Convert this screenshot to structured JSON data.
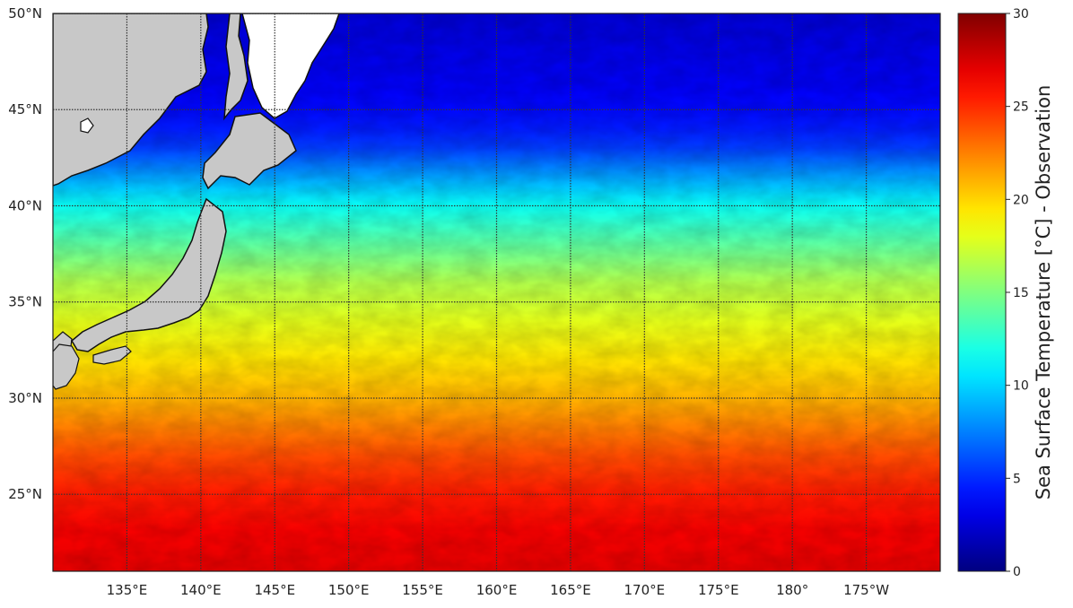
{
  "chart_data": {
    "type": "heatmap",
    "title": "",
    "map": {
      "lon_range": [
        130,
        190
      ],
      "lat_range": [
        21,
        50
      ],
      "land_color": "#c8c8c8",
      "no_data_color": "#ffffff",
      "gridlines": "dotted"
    },
    "x_ticks": [
      {
        "lon": 135,
        "label": "135°E"
      },
      {
        "lon": 140,
        "label": "140°E"
      },
      {
        "lon": 145,
        "label": "145°E"
      },
      {
        "lon": 150,
        "label": "150°E"
      },
      {
        "lon": 155,
        "label": "155°E"
      },
      {
        "lon": 160,
        "label": "160°E"
      },
      {
        "lon": 165,
        "label": "165°E"
      },
      {
        "lon": 170,
        "label": "170°E"
      },
      {
        "lon": 175,
        "label": "175°E"
      },
      {
        "lon": 180,
        "label": "180°"
      },
      {
        "lon": 185,
        "label": "175°W"
      }
    ],
    "y_ticks": [
      {
        "lat": 50,
        "label": "50°N"
      },
      {
        "lat": 45,
        "label": "45°N"
      },
      {
        "lat": 40,
        "label": "40°N"
      },
      {
        "lat": 35,
        "label": "35°N"
      },
      {
        "lat": 30,
        "label": "30°N"
      },
      {
        "lat": 25,
        "label": "25°N"
      }
    ],
    "colorbar": {
      "label": "Sea Surface Temperature [°C] - Observation",
      "colormap": "jet",
      "range": [
        0,
        30
      ],
      "ticks": [
        "0",
        "5",
        "10",
        "15",
        "20",
        "25",
        "30"
      ]
    },
    "sst_by_latitude": {
      "lat": [
        21,
        23,
        25,
        27,
        29,
        30,
        32,
        34,
        36,
        38,
        40,
        41,
        42,
        43,
        44,
        45,
        46,
        48,
        50
      ],
      "value": [
        27,
        26.5,
        25.5,
        24,
        22,
        21,
        19.5,
        18,
        16.5,
        14,
        11.5,
        9.5,
        7.5,
        5.5,
        4.5,
        4,
        3.5,
        3,
        2.5
      ]
    }
  }
}
